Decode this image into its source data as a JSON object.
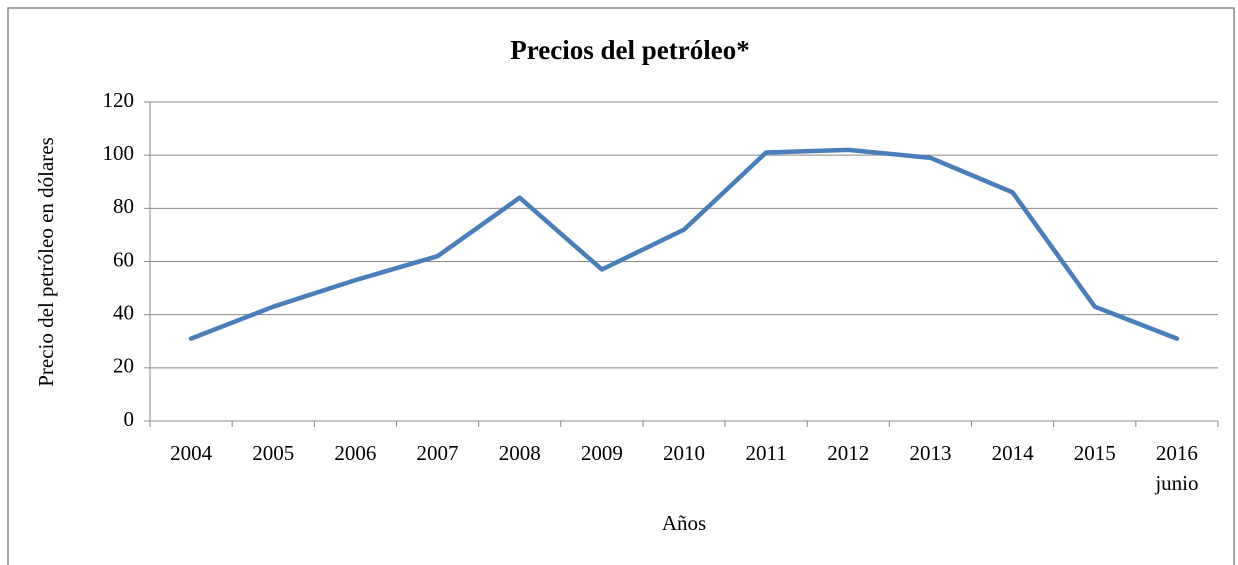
{
  "chart_data": {
    "type": "line",
    "title": "Precios del petróleo*",
    "x_label": "Años",
    "y_label": "Precio del petróleo en dólares",
    "categories": [
      "2004",
      "2005",
      "2006",
      "2007",
      "2008",
      "2009",
      "2010",
      "2011",
      "2012",
      "2013",
      "2014",
      "2015",
      "2016\njunio"
    ],
    "series": [
      {
        "name": "Precio",
        "color": "#4a7ebb",
        "values": [
          31,
          43,
          53,
          62,
          84,
          57,
          72,
          101,
          102,
          99,
          86,
          43,
          31
        ]
      }
    ],
    "ylim": [
      0,
      120
    ],
    "yticks": [
      0,
      20,
      40,
      60,
      80,
      100,
      120
    ],
    "grid": true
  }
}
